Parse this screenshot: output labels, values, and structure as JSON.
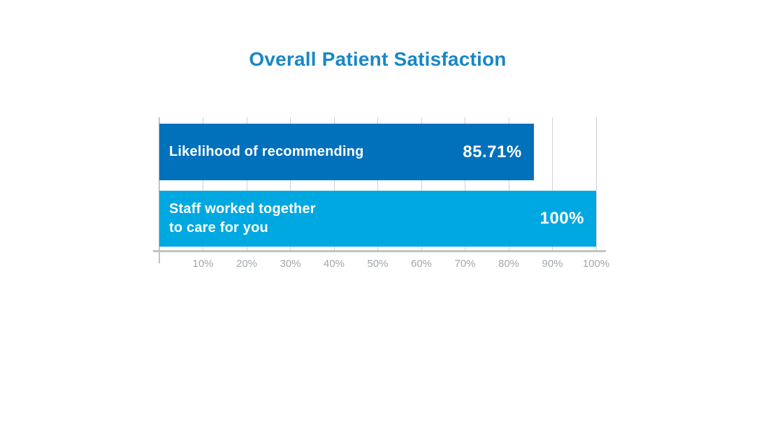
{
  "chart_data": {
    "type": "bar",
    "orientation": "horizontal",
    "title": "Overall Patient Satisfaction",
    "categories": [
      "Likelihood of recommending",
      "Staff worked together\nto care for you"
    ],
    "values": [
      85.71,
      100
    ],
    "value_labels": [
      "85.71%",
      "100%"
    ],
    "bar_colors": [
      "#0071ba",
      "#00a8e1"
    ],
    "xlim": [
      0,
      100
    ],
    "x_ticks": [
      "10%",
      "20%",
      "30%",
      "40%",
      "50%",
      "60%",
      "70%",
      "80%",
      "90%",
      "100%"
    ],
    "x_tick_values": [
      10,
      20,
      30,
      40,
      50,
      60,
      70,
      80,
      90,
      100
    ],
    "xlabel": "",
    "ylabel": "",
    "grid": true,
    "legend": false
  },
  "colors": {
    "title": "#1787c8",
    "grid": "#cdd0d3",
    "axis": "#c0c3c5",
    "tick_label": "#a3a7ab",
    "bar_text": "#ffffff"
  }
}
